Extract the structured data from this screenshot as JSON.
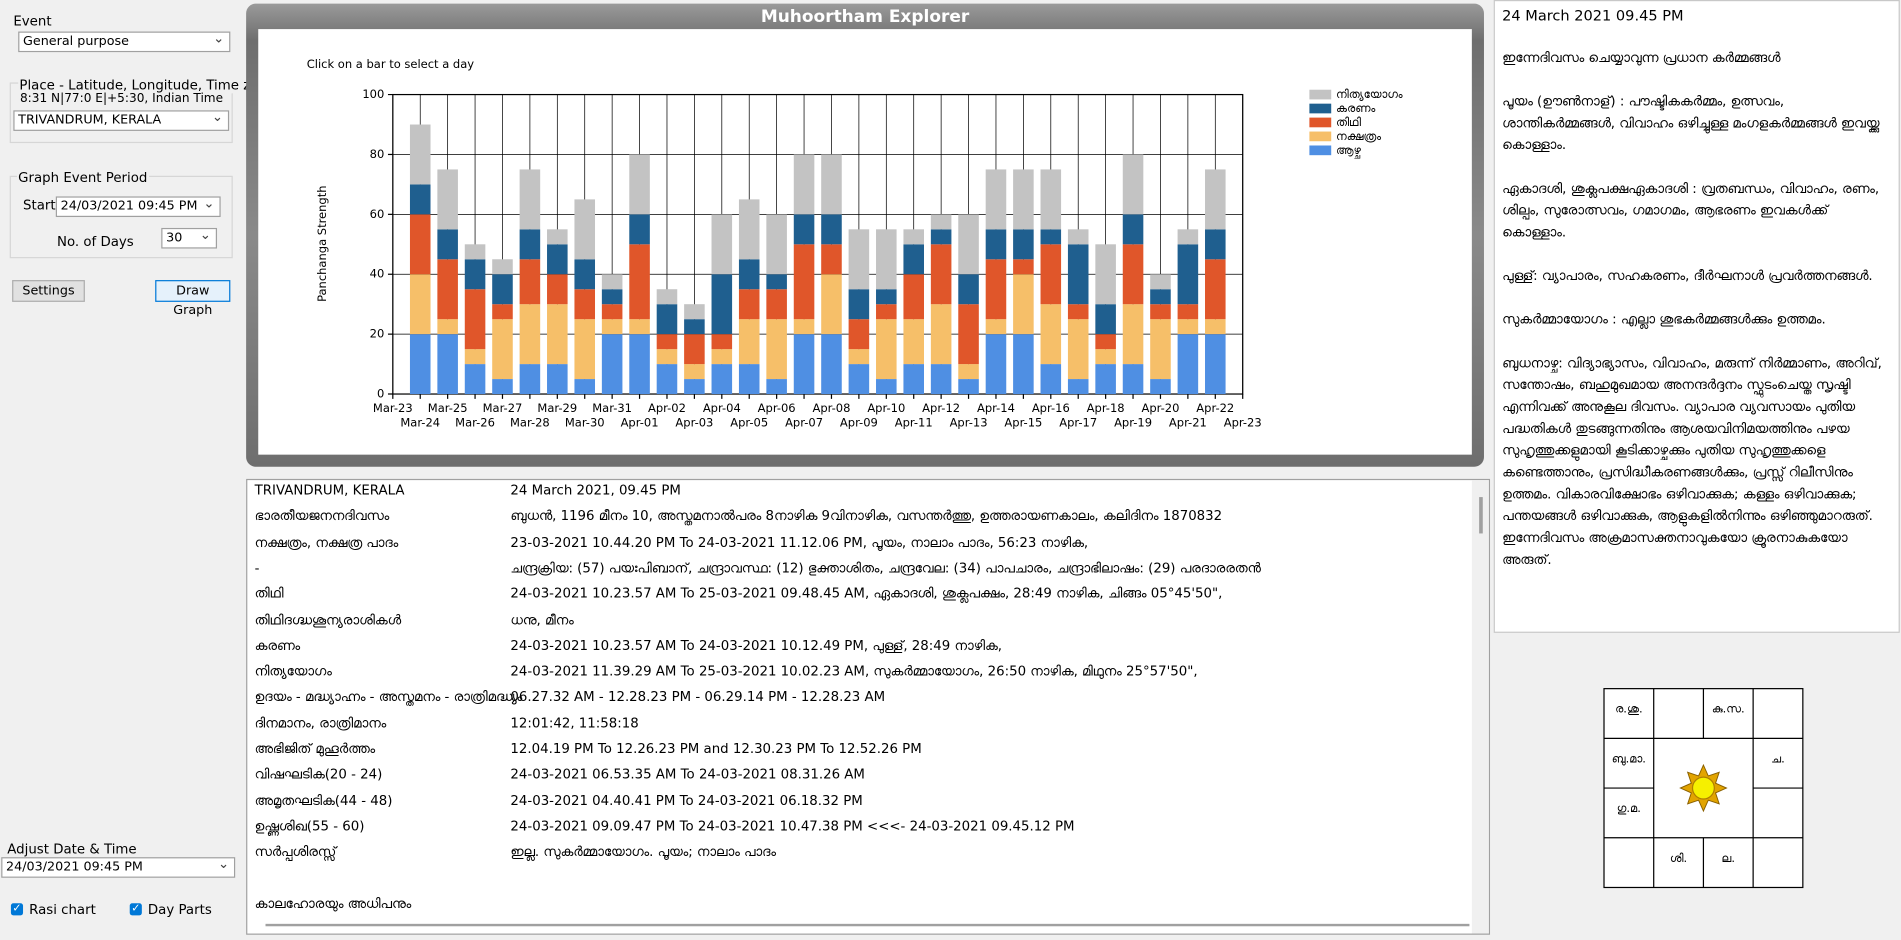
{
  "left_panel": {
    "event_label": "Event",
    "event_value": "General purpose",
    "place_group": "Place - Latitude, Longitude, Time zone",
    "coords": "8:31 N|77:0 E|+5:30, Indian Time",
    "place_value": "TRIVANDRUM, KERALA",
    "graph_group": "Graph  Event Period",
    "start_label": "Start",
    "start_value": "24/03/2021  09:45 PM",
    "days_label": "No. of Days",
    "days_value": "30",
    "settings_button": "Settings",
    "draw_button": "Draw Graph",
    "adjust_label": "Adjust Date & Time",
    "adjust_value": "24/03/2021  09:45 PM",
    "rasi_checkbox": "Rasi chart",
    "dayparts_checkbox": "Day Parts"
  },
  "chart_data": {
    "type": "stacked_bar",
    "title": "Muhoortham Explorer",
    "annotation": "Click on a bar to select a day",
    "y_label": "Panchanga Strength",
    "categories": [
      "Mar-23",
      "Mar-24",
      "Mar-25",
      "Mar-26",
      "Mar-27",
      "Mar-28",
      "Mar-29",
      "Mar-30",
      "Mar-31",
      "Apr-01",
      "Apr-02",
      "Apr-03",
      "Apr-04",
      "Apr-05",
      "Apr-06",
      "Apr-07",
      "Apr-08",
      "Apr-09",
      "Apr-10",
      "Apr-11",
      "Apr-12",
      "Apr-13",
      "Apr-14",
      "Apr-15",
      "Apr-16",
      "Apr-17",
      "Apr-18",
      "Apr-19",
      "Apr-20",
      "Apr-21",
      "Apr-22",
      "Apr-23"
    ],
    "ylim": [
      0,
      100
    ],
    "yticks": [
      0,
      20,
      40,
      60,
      80,
      100
    ],
    "grid": true,
    "legend": "right",
    "series": [
      {
        "name": "ആഴ്ച",
        "color": "#4f8fe3",
        "values": [
          null,
          20,
          20,
          10,
          5,
          10,
          10,
          5,
          20,
          20,
          10,
          5,
          10,
          10,
          5,
          20,
          20,
          10,
          5,
          10,
          10,
          5,
          20,
          20,
          10,
          5,
          10,
          10,
          5,
          20,
          20,
          null
        ]
      },
      {
        "name": "നക്ഷത്രം",
        "color": "#f6bf69",
        "values": [
          null,
          20,
          5,
          5,
          20,
          20,
          20,
          20,
          5,
          5,
          5,
          5,
          5,
          15,
          20,
          5,
          20,
          5,
          20,
          15,
          20,
          5,
          5,
          20,
          20,
          20,
          5,
          20,
          20,
          5,
          5,
          null
        ]
      },
      {
        "name": "തിഥി",
        "color": "#e0562a",
        "values": [
          null,
          20,
          20,
          20,
          5,
          15,
          10,
          10,
          5,
          25,
          5,
          10,
          5,
          10,
          10,
          25,
          10,
          10,
          5,
          15,
          20,
          20,
          20,
          5,
          20,
          5,
          5,
          20,
          5,
          5,
          20,
          null
        ]
      },
      {
        "name": "കരണം",
        "color": "#1f5f8f",
        "values": [
          null,
          10,
          10,
          10,
          10,
          10,
          10,
          10,
          5,
          10,
          10,
          5,
          20,
          10,
          5,
          10,
          10,
          10,
          5,
          10,
          5,
          10,
          10,
          10,
          5,
          20,
          10,
          10,
          5,
          20,
          10,
          null
        ]
      },
      {
        "name": "നിത്യയോഗം",
        "color": "#c3c3c3",
        "values": [
          null,
          20,
          20,
          5,
          5,
          20,
          5,
          20,
          5,
          20,
          5,
          5,
          20,
          20,
          20,
          20,
          20,
          20,
          20,
          5,
          5,
          20,
          20,
          20,
          20,
          5,
          20,
          20,
          5,
          5,
          20,
          null
        ]
      }
    ]
  },
  "table": {
    "rows": [
      [
        "TRIVANDRUM, KERALA",
        "24 March 2021, 09.45 PM"
      ],
      [
        "ഭാരതീയജനനദിവസം",
        "ബുധൻ, 1196 മീനം  10, അസ്തമനാൽപരം 8നാഴിക 9വിനാഴിക, വസന്തർത്തു, ഉത്തരായണകാലം, കലിദിനം 1870832"
      ],
      [
        "നക്ഷത്രം, നക്ഷത്ര പാദം",
        "23-03-2021 10.44.20 PM To 24-03-2021 11.12.06 PM, പൂയം, നാലാം പാദം, 56:23 നാഴിക,"
      ],
      [
        "  -",
        "ചന്ദ്രക്രിയ: (57) പയഃപിബാന്, ചന്ദ്രാവസ്ഥ: (12) ഭുക്താശിതം, ചന്ദ്രവേല: (34) പാപചാരം, ചന്ദ്രാഭിലാഷം: (29) പരദാരരതൻ"
      ],
      [
        "തിഥി",
        "24-03-2021 10.23.57 AM To 25-03-2021 09.48.45 AM, ഏകാദശി, ശുക്ലപക്ഷം, 28:49 നാഴിക, ചിങ്ങം 05°45'50\","
      ],
      [
        "തിഥിദഗ്ദ്ധശൂന്യരാശികൾ",
        "ധനു, മീനം"
      ],
      [
        "കരണം",
        "24-03-2021 10.23.57 AM To 24-03-2021 10.12.49 PM, പുള്ള്, 28:49 നാഴിക,"
      ],
      [
        "നിത്യയോഗം",
        "24-03-2021 11.39.29 AM To 25-03-2021 10.02.23 AM, സുകർമ്മായോഗം, 26:50 നാഴിക, മിഥുനം 25°57'50\","
      ],
      [
        "ഉദയം - മദ്ധ്യാഹ്നം - അസ്തമനം - രാത്രിമദ്ധ്യം",
        "06.27.32 AM - 12.28.23 PM - 06.29.14 PM - 12.28.23 AM"
      ],
      [
        "ദിനമാനം, രാത്രിമാനം",
        "12:01:42, 11:58:18"
      ],
      [
        "അഭിജിത് മുഹൂർത്തം",
        "12.04.19 PM To 12.26.23 PM and 12.30.23 PM To 12.52.26 PM"
      ],
      [
        "വിഷഘടിക(20 - 24)",
        "24-03-2021 06.53.35 AM To 24-03-2021 08.31.26 AM"
      ],
      [
        "അമൃതഘടിക(44 - 48)",
        "24-03-2021 04.40.41 PM To 24-03-2021 06.18.32 PM"
      ],
      [
        "ഉഷ്ണശിഖ(55 - 60)",
        "24-03-2021 09.09.47 PM To 24-03-2021 10.47.38 PM  <<<- 24-03-2021 09.45.12 PM"
      ],
      [
        "സർപ്പശിരസ്സ്",
        "ഇല്ല. സുകർമ്മായോഗം. പൂയം; നാലാം പാദം"
      ]
    ],
    "section": "കാലഹോരയും അധിപനും"
  },
  "right_panel": {
    "datetime": "24 March 2021 09.45 PM",
    "heading": "ഇന്നേദിവസം ചെയ്യാവുന്ന പ്രധാന കർമ്മങ്ങൾ",
    "paragraphs": [
      "പൂയം (ഊൺനാള്) : പൗഷ്ടികകർമ്മം, ഉത്സവം, ശാന്തികർമ്മങ്ങൾ, വിവാഹം ഒഴിച്ചുള്ള മംഗളകർമ്മങ്ങൾ ഇവയ്ക്കു കൊള്ളാം.",
      "ഏകാദശി, ശുക്ലപക്ഷഏകാദശി : വ്രതബന്ധം, വിവാഹം, രണം, ശില്പം, സുരോത്സവം, ഗമാഗമം, ആഭരണം ഇവകൾക്ക് കൊള്ളാം.",
      "പുള്ള്: വ്യാപാരം, സഹകരണം, ദീർഘനാൾ പ്രവർത്തനങ്ങൾ.",
      "സുകർമ്മായോഗം : എല്ലാ ശുഭകർമ്മങ്ങൾക്കും ഉത്തമം.",
      "ബുധനാഴ്ച: വിദ്യാഭ്യാസം, വിവാഹം, മരുന്ന് നിർമ്മാണം, അറിവ്, സന്തോഷം, ബഹുമുഖമായ അനന്ദർദ്ദനം സ്ഫുടംചെയ്ത സൃഷ്ടി എന്നിവക്ക് അനുകൂല ദിവസം. വ്യാപാര വ്യവസായം പുതിയ പദ്ധതികൾ തുടങ്ങുന്നതിനും ആശയവിനിമയത്തിനും പഴയ സുഹൃത്തുക്കളുമായി കൂടിക്കാഴ്ചക്കും പുതിയ സുഹൃത്തുക്കളെ കണ്ടെത്താനും, പ്രസിദ്ധീകരണങ്ങൾക്കും, പ്രസ്സ് റിലീസിനും ഉത്തമം. വികാരവിക്ഷോഭം ഒഴിവാക്കുക; കള്ളം ഒഴിവാക്കുക; പന്തയങ്ങൾ ഒഴിവാക്കുക, ആളുകളിൽനിന്നും ഒഴിഞ്ഞുമാറരുത്. ഇന്നേദിവസം അക്രമാസക്തനാവുകയോ ക്രൂരനാകുകയോ അരുത്."
    ]
  },
  "rasi_chart": {
    "rows": [
      [
        "ര.ശു.",
        null,
        "കു.സ.",
        null
      ],
      [
        "ബു.മാ.",
        null,
        null,
        "ച."
      ],
      [
        "ഗു.മ.",
        null,
        null,
        null
      ],
      [
        null,
        "ശി.",
        "ല.",
        null
      ]
    ]
  }
}
